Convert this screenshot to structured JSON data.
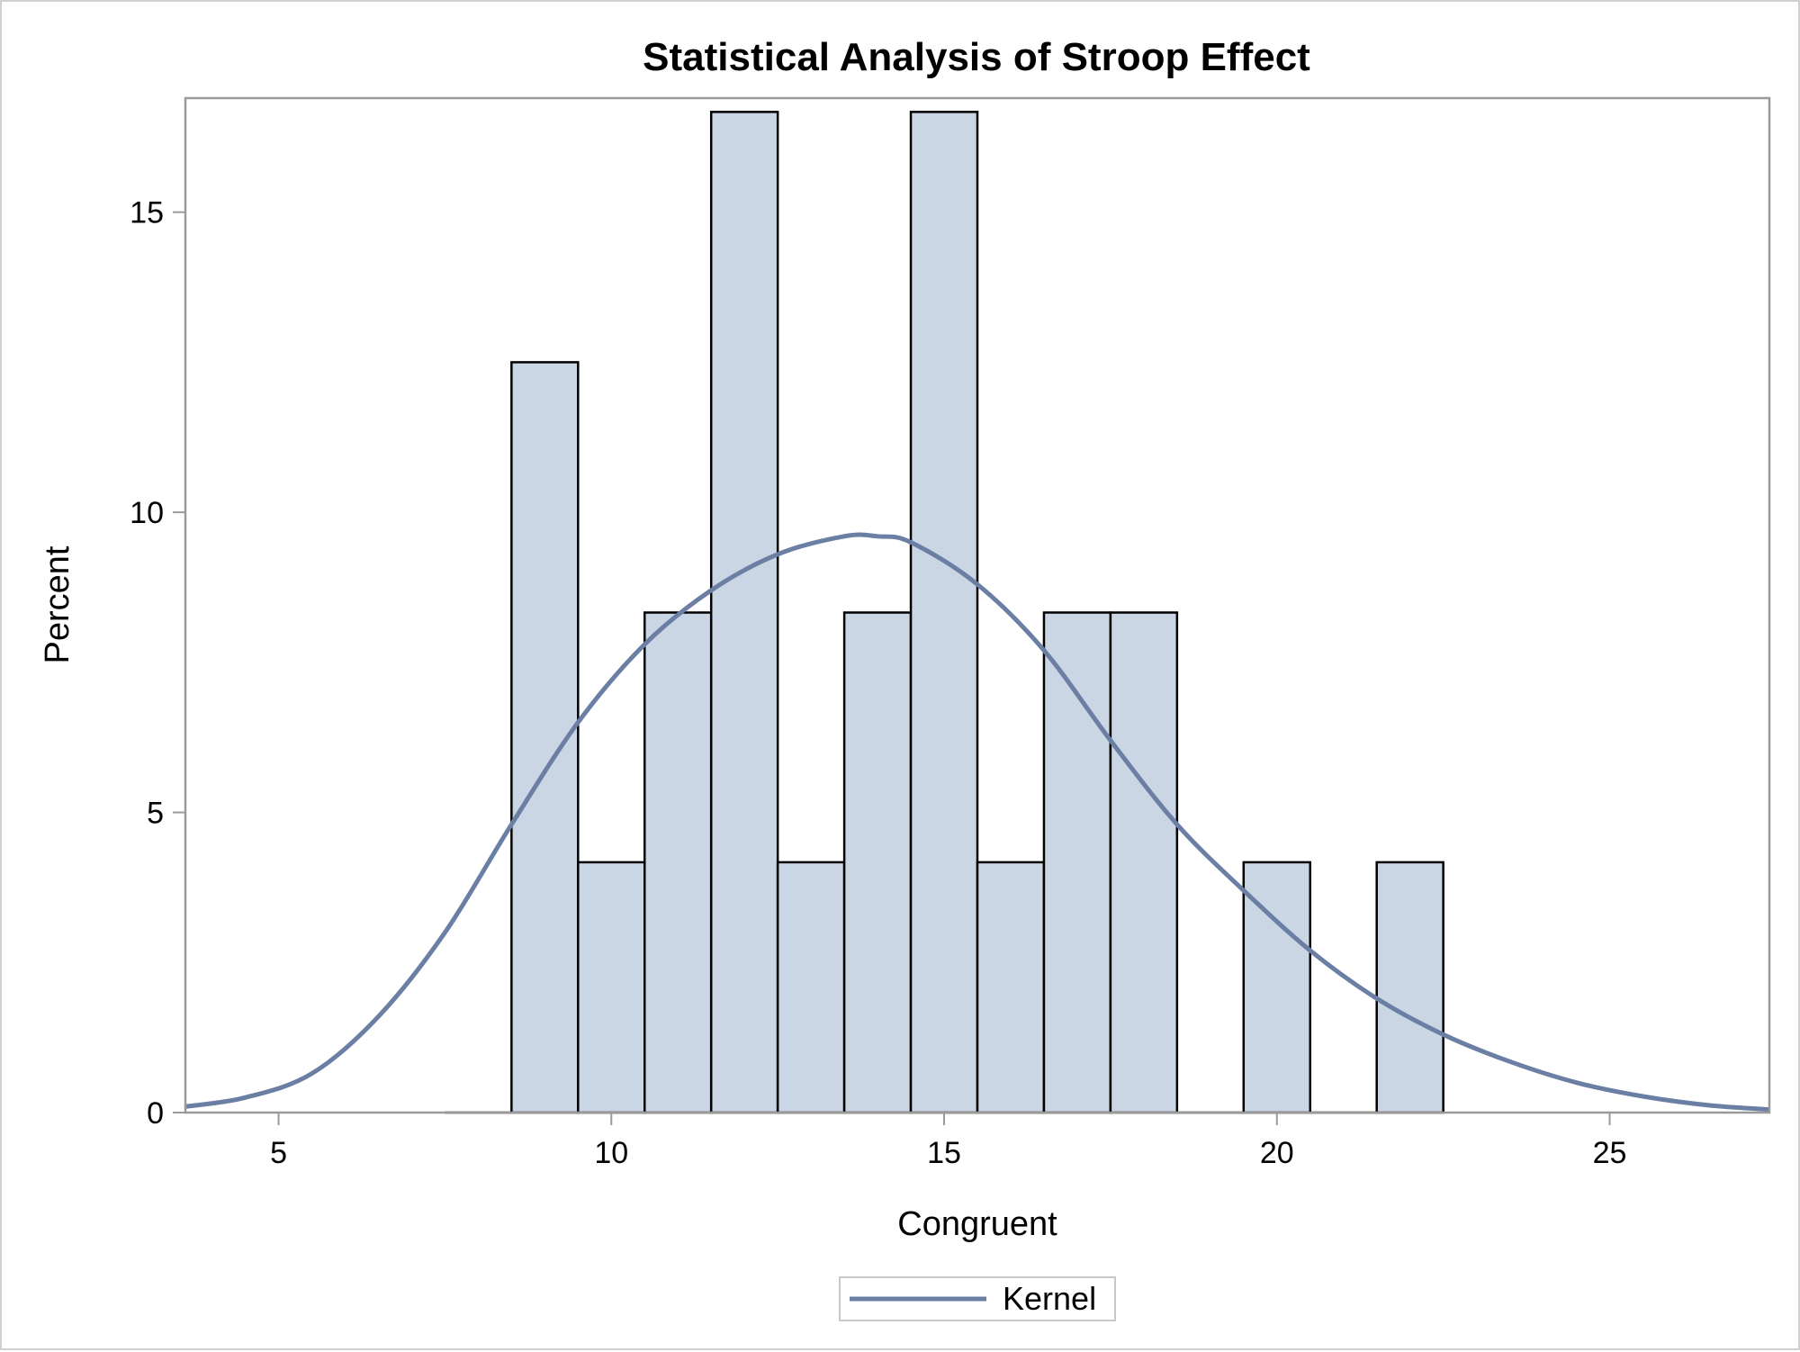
{
  "chart_data": {
    "type": "bar",
    "title": "Statistical Analysis of Stroop Effect",
    "xlabel": "Congruent",
    "ylabel": "Percent",
    "xlim": [
      3.6,
      27.4
    ],
    "ylim": [
      0,
      16.9
    ],
    "x_ticks": [
      5,
      10,
      15,
      20,
      25
    ],
    "y_ticks": [
      0,
      5,
      10,
      15
    ],
    "bins": [
      {
        "from": 7.5,
        "to": 8.5,
        "value": 0
      },
      {
        "from": 8.5,
        "to": 9.5,
        "value": 12.5
      },
      {
        "from": 9.5,
        "to": 10.5,
        "value": 4.17
      },
      {
        "from": 10.5,
        "to": 11.5,
        "value": 8.33
      },
      {
        "from": 11.5,
        "to": 12.5,
        "value": 16.67
      },
      {
        "from": 12.5,
        "to": 13.5,
        "value": 4.17
      },
      {
        "from": 13.5,
        "to": 14.5,
        "value": 8.33
      },
      {
        "from": 14.5,
        "to": 15.5,
        "value": 16.67
      },
      {
        "from": 15.5,
        "to": 16.5,
        "value": 4.17
      },
      {
        "from": 16.5,
        "to": 17.5,
        "value": 8.33
      },
      {
        "from": 17.5,
        "to": 18.5,
        "value": 8.33
      },
      {
        "from": 18.5,
        "to": 19.5,
        "value": 0
      },
      {
        "from": 19.5,
        "to": 20.5,
        "value": 4.17
      },
      {
        "from": 20.5,
        "to": 21.5,
        "value": 0
      },
      {
        "from": 21.5,
        "to": 22.5,
        "value": 4.17
      }
    ],
    "series": [
      {
        "name": "Kernel",
        "type": "line",
        "points": [
          [
            3.6,
            0.1
          ],
          [
            4.5,
            0.25
          ],
          [
            5.5,
            0.65
          ],
          [
            6.5,
            1.6
          ],
          [
            7.5,
            3.0
          ],
          [
            8.5,
            4.8
          ],
          [
            9.5,
            6.5
          ],
          [
            10.5,
            7.8
          ],
          [
            11.5,
            8.7
          ],
          [
            12.5,
            9.3
          ],
          [
            13.5,
            9.6
          ],
          [
            14.0,
            9.6
          ],
          [
            14.5,
            9.5
          ],
          [
            15.5,
            8.8
          ],
          [
            16.5,
            7.7
          ],
          [
            17.5,
            6.2
          ],
          [
            18.5,
            4.8
          ],
          [
            19.5,
            3.7
          ],
          [
            20.5,
            2.7
          ],
          [
            21.5,
            1.9
          ],
          [
            22.5,
            1.3
          ],
          [
            23.5,
            0.85
          ],
          [
            24.5,
            0.5
          ],
          [
            25.5,
            0.27
          ],
          [
            26.5,
            0.12
          ],
          [
            27.4,
            0.05
          ]
        ]
      }
    ],
    "legend": {
      "position": "bottom-center",
      "entries": [
        "Kernel"
      ]
    },
    "grid": false,
    "colors": {
      "bar_fill": "#cbd6e5",
      "bar_stroke": "#000000",
      "kernel_line": "#6a7fa3",
      "frame": "#9a9a9a"
    }
  }
}
